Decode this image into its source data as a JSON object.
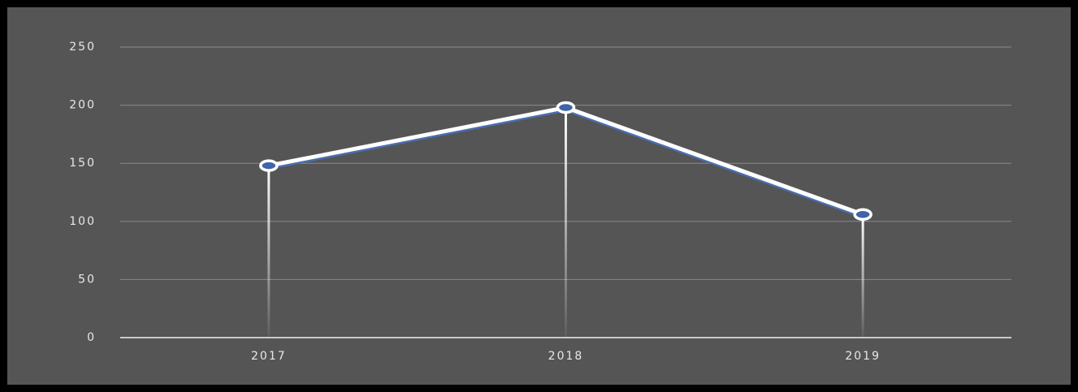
{
  "chart_data": {
    "type": "line",
    "categories": [
      "2017",
      "2018",
      "2019"
    ],
    "values": [
      148,
      198,
      106
    ],
    "color": "#ffffff",
    "ylim": [
      0,
      250
    ],
    "yticks": [
      0,
      50,
      100,
      150,
      200,
      250
    ],
    "grid": true,
    "drop_lines": true
  }
}
